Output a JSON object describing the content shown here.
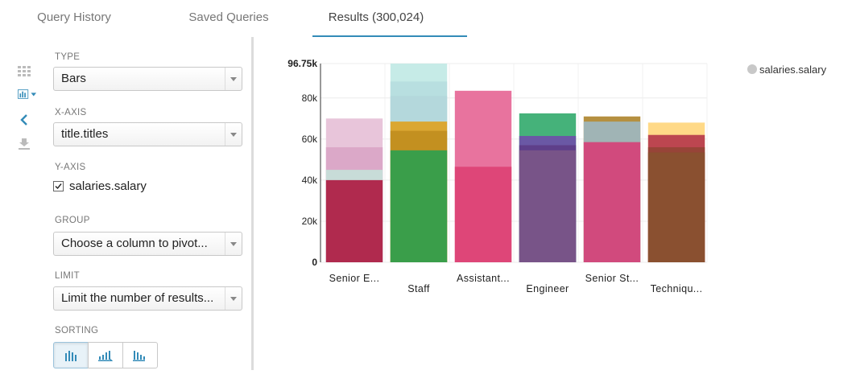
{
  "tabs": [
    {
      "label": "Query History"
    },
    {
      "label": "Saved Queries"
    },
    {
      "label": "Results (300,024)"
    }
  ],
  "rail": {
    "icons": [
      "grid-icon",
      "bar-chart-icon",
      "chevron-left-icon",
      "download-icon"
    ],
    "accent": "#338bb8",
    "muted": "#bbbbbb"
  },
  "options": {
    "type_label": "TYPE",
    "type_value": "Bars",
    "xaxis_label": "X-AXIS",
    "xaxis_value": "title.titles",
    "yaxis_label": "Y-AXIS",
    "yaxis_checkbox": "salaries.salary",
    "yaxis_checked": true,
    "group_label": "GROUP",
    "group_placeholder": "Choose a column to pivot...",
    "limit_label": "LIMIT",
    "limit_placeholder": "Limit the number of results...",
    "sorting_label": "SORTING",
    "sorting_options": [
      "sort-none-icon",
      "sort-ascending-icon",
      "sort-descending-icon"
    ]
  },
  "legend": {
    "label": "salaries.salary",
    "color": "#c8c8c8"
  },
  "chart_data": {
    "type": "bar",
    "categories": [
      "Senior E...",
      "Staff",
      "Assistant...",
      "Engineer",
      "Senior St...",
      "Techniqu..."
    ],
    "series": [
      {
        "name": "salaries.salary"
      }
    ],
    "stacks": [
      {
        "category": "Senior E...",
        "layers": [
          {
            "value": 70000,
            "color": "#e8c5da",
            "opacity": 1
          },
          {
            "value": 56000,
            "color": "#dba8c8",
            "opacity": 1
          },
          {
            "value": 45000,
            "color": "#c8dcd8",
            "opacity": 1
          },
          {
            "value": 40000,
            "color": "#b02a4e",
            "opacity": 1
          }
        ]
      },
      {
        "category": "Staff",
        "layers": [
          {
            "value": 96750,
            "color": "#c6ebe7",
            "opacity": 1
          },
          {
            "value": 88000,
            "color": "#b8dfe0",
            "opacity": 1
          },
          {
            "value": 81000,
            "color": "#b4d8dc",
            "opacity": 1
          },
          {
            "value": 68500,
            "color": "#dba732",
            "opacity": 1
          },
          {
            "value": 64000,
            "color": "#c39020",
            "opacity": 1
          },
          {
            "value": 54500,
            "color": "#3a9e4a",
            "opacity": 1
          }
        ]
      },
      {
        "category": "Assistant...",
        "layers": [
          {
            "value": 83500,
            "color": "#e8739e",
            "opacity": 1
          },
          {
            "value": 46500,
            "color": "#de4678",
            "opacity": 1
          }
        ]
      },
      {
        "category": "Engineer",
        "layers": [
          {
            "value": 72500,
            "color": "#45b27a",
            "opacity": 1
          },
          {
            "value": 61500,
            "color": "#6a58a5",
            "opacity": 1
          },
          {
            "value": 57000,
            "color": "#5e3f8a",
            "opacity": 1
          },
          {
            "value": 54500,
            "color": "#785488",
            "opacity": 1
          }
        ]
      },
      {
        "category": "Senior St...",
        "layers": [
          {
            "value": 71000,
            "color": "#b59040",
            "opacity": 1
          },
          {
            "value": 68500,
            "color": "#a0b4b5",
            "opacity": 1
          },
          {
            "value": 58500,
            "color": "#d14a7d",
            "opacity": 1
          }
        ]
      },
      {
        "category": "Techniqu...",
        "layers": [
          {
            "value": 68000,
            "color": "#ffd987",
            "opacity": 1
          },
          {
            "value": 62000,
            "color": "#bc4650",
            "opacity": 1
          },
          {
            "value": 56000,
            "color": "#974438",
            "opacity": 1
          },
          {
            "value": 53500,
            "color": "#8a5030",
            "opacity": 1
          }
        ]
      }
    ],
    "yticks": [
      {
        "value": 0,
        "label": "0"
      },
      {
        "value": 20000,
        "label": "20k"
      },
      {
        "value": 40000,
        "label": "40k"
      },
      {
        "value": 60000,
        "label": "60k"
      },
      {
        "value": 80000,
        "label": "80k"
      },
      {
        "value": 96750,
        "label": "96.75k"
      }
    ],
    "ylim": [
      0,
      96750
    ],
    "grid": true,
    "legend_position": "top-right"
  }
}
